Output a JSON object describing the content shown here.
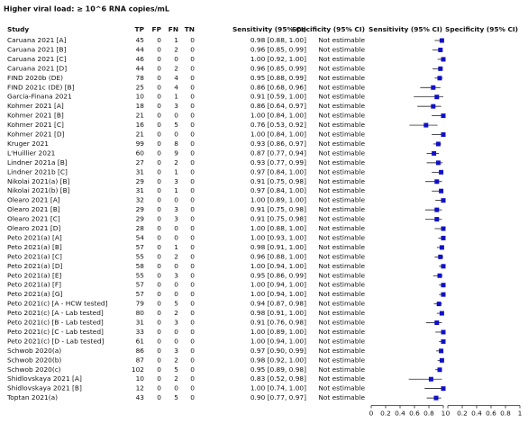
{
  "title": "Higher viral load: ≥ 10^6 RNA copies/mL",
  "columns": [
    "Study",
    "TP",
    "FP",
    "FN",
    "TN",
    "Sensitivity (95% CI)",
    "Specificity (95% CI)",
    "Sensitivity (95% CI)",
    "Specificity (95% CI)"
  ],
  "rows": [
    [
      "Caruana 2021 [A]",
      45,
      0,
      1,
      0,
      "0.98 [0.88, 1.00]",
      "Not estimable",
      0.98,
      0.88,
      1.0
    ],
    [
      "Caruana 2021 [B]",
      44,
      0,
      2,
      0,
      "0.96 [0.85, 0.99]",
      "Not estimable",
      0.96,
      0.85,
      0.99
    ],
    [
      "Caruana 2021 [C]",
      46,
      0,
      0,
      0,
      "1.00 [0.92, 1.00]",
      "Not estimable",
      1.0,
      0.92,
      1.0
    ],
    [
      "Caruana 2021 [D]",
      44,
      0,
      2,
      0,
      "0.96 [0.85, 0.99]",
      "Not estimable",
      0.96,
      0.85,
      0.99
    ],
    [
      "FIND 2020b (DE)",
      78,
      0,
      4,
      0,
      "0.95 [0.88, 0.99]",
      "Not estimable",
      0.95,
      0.88,
      0.99
    ],
    [
      "FIND 2021c (DE) [B]",
      25,
      0,
      4,
      0,
      "0.86 [0.68, 0.96]",
      "Not estimable",
      0.86,
      0.68,
      0.96
    ],
    [
      "Garcia-Finana 2021",
      10,
      0,
      1,
      0,
      "0.91 [0.59, 1.00]",
      "Not estimable",
      0.91,
      0.59,
      1.0
    ],
    [
      "Kohmer 2021 [A]",
      18,
      0,
      3,
      0,
      "0.86 [0.64, 0.97]",
      "Not estimable",
      0.86,
      0.64,
      0.97
    ],
    [
      "Kohmer 2021 [B]",
      21,
      0,
      0,
      0,
      "1.00 [0.84, 1.00]",
      "Not estimable",
      1.0,
      0.84,
      1.0
    ],
    [
      "Kohmer 2021 [C]",
      16,
      0,
      5,
      0,
      "0.76 [0.53, 0.92]",
      "Not estimable",
      0.76,
      0.53,
      0.92
    ],
    [
      "Kohmer 2021 [D]",
      21,
      0,
      0,
      0,
      "1.00 [0.84, 1.00]",
      "Not estimable",
      1.0,
      0.84,
      1.0
    ],
    [
      "Kruger 2021",
      99,
      0,
      8,
      0,
      "0.93 [0.86, 0.97]",
      "Not estimable",
      0.93,
      0.86,
      0.97
    ],
    [
      "L'Huillier 2021",
      60,
      0,
      9,
      0,
      "0.87 [0.77, 0.94]",
      "Not estimable",
      0.87,
      0.77,
      0.94
    ],
    [
      "Lindner 2021a [B]",
      27,
      0,
      2,
      0,
      "0.93 [0.77, 0.99]",
      "Not estimable",
      0.93,
      0.77,
      0.99
    ],
    [
      "Lindner 2021b [C]",
      31,
      0,
      1,
      0,
      "0.97 [0.84, 1.00]",
      "Not estimable",
      0.97,
      0.84,
      1.0
    ],
    [
      "Nikolai 2021(a) [B]",
      29,
      0,
      3,
      0,
      "0.91 [0.75, 0.98]",
      "Not estimable",
      0.91,
      0.75,
      0.98
    ],
    [
      "Nikolai 2021(b) [B]",
      31,
      0,
      1,
      0,
      "0.97 [0.84, 1.00]",
      "Not estimable",
      0.97,
      0.84,
      1.0
    ],
    [
      "Olearo 2021 [A]",
      32,
      0,
      0,
      0,
      "1.00 [0.89, 1.00]",
      "Not estimable",
      1.0,
      0.89,
      1.0
    ],
    [
      "Olearo 2021 [B]",
      29,
      0,
      3,
      0,
      "0.91 [0.75, 0.98]",
      "Not estimable",
      0.91,
      0.75,
      0.98
    ],
    [
      "Olearo 2021 [C]",
      29,
      0,
      3,
      0,
      "0.91 [0.75, 0.98]",
      "Not estimable",
      0.91,
      0.75,
      0.98
    ],
    [
      "Olearo 2021 [D]",
      28,
      0,
      0,
      0,
      "1.00 [0.88, 1.00]",
      "Not estimable",
      1.0,
      0.88,
      1.0
    ],
    [
      "Peto 2021(a) [A]",
      54,
      0,
      0,
      0,
      "1.00 [0.93, 1.00]",
      "Not estimable",
      1.0,
      0.93,
      1.0
    ],
    [
      "Peto 2021(a) [B]",
      57,
      0,
      1,
      0,
      "0.98 [0.91, 1.00]",
      "Not estimable",
      0.98,
      0.91,
      1.0
    ],
    [
      "Peto 2021(a) [C]",
      55,
      0,
      2,
      0,
      "0.96 [0.88, 1.00]",
      "Not estimable",
      0.96,
      0.88,
      1.0
    ],
    [
      "Peto 2021(a) [D]",
      58,
      0,
      0,
      0,
      "1.00 [0.94, 1.00]",
      "Not estimable",
      1.0,
      0.94,
      1.0
    ],
    [
      "Peto 2021(a) [E]",
      55,
      0,
      3,
      0,
      "0.95 [0.86, 0.99]",
      "Not estimable",
      0.95,
      0.86,
      0.99
    ],
    [
      "Peto 2021(a) [F]",
      57,
      0,
      0,
      0,
      "1.00 [0.94, 1.00]",
      "Not estimable",
      1.0,
      0.94,
      1.0
    ],
    [
      "Peto 2021(a) [G]",
      57,
      0,
      0,
      0,
      "1.00 [0.94, 1.00]",
      "Not estimable",
      1.0,
      0.94,
      1.0
    ],
    [
      "Peto 2021(c) [A - HCW tested]",
      79,
      0,
      5,
      0,
      "0.94 [0.87, 0.98]",
      "Not estimable",
      0.94,
      0.87,
      0.98
    ],
    [
      "Peto 2021(c) [A - Lab tested]",
      80,
      0,
      2,
      0,
      "0.98 [0.91, 1.00]",
      "Not estimable",
      0.98,
      0.91,
      1.0
    ],
    [
      "Peto 2021(c) [B - Lab tested]",
      31,
      0,
      3,
      0,
      "0.91 [0.76, 0.98]",
      "Not estimable",
      0.91,
      0.76,
      0.98
    ],
    [
      "Peto 2021(c) [C - Lab tested]",
      33,
      0,
      0,
      0,
      "1.00 [0.89, 1.00]",
      "Not estimable",
      1.0,
      0.89,
      1.0
    ],
    [
      "Peto 2021(c) [D - Lab tested]",
      61,
      0,
      0,
      0,
      "1.00 [0.94, 1.00]",
      "Not estimable",
      1.0,
      0.94,
      1.0
    ],
    [
      "Schwob 2020(a)",
      86,
      0,
      3,
      0,
      "0.97 [0.90, 0.99]",
      "Not estimable",
      0.97,
      0.9,
      0.99
    ],
    [
      "Schwob 2020(b)",
      87,
      0,
      2,
      0,
      "0.98 [0.92, 1.00]",
      "Not estimable",
      0.98,
      0.92,
      1.0
    ],
    [
      "Schwob 2020(c)",
      102,
      0,
      5,
      0,
      "0.95 [0.89, 0.98]",
      "Not estimable",
      0.95,
      0.89,
      0.98
    ],
    [
      "Shidlovskaya 2021 [A]",
      10,
      0,
      2,
      0,
      "0.83 [0.52, 0.98]",
      "Not estimable",
      0.83,
      0.52,
      0.98
    ],
    [
      "Shidlovskaya 2021 [B]",
      12,
      0,
      0,
      0,
      "1.00 [0.74, 1.00]",
      "Not estimable",
      1.0,
      0.74,
      1.0
    ],
    [
      "Toptan 2021(a)",
      43,
      0,
      5,
      0,
      "0.90 [0.77, 0.97]",
      "Not estimable",
      0.9,
      0.77,
      0.97
    ]
  ],
  "sensitivity_axis": {
    "xlim": [
      0,
      1
    ],
    "xticks": [
      0,
      0.2,
      0.4,
      0.6,
      0.8,
      1
    ]
  },
  "specificity_axis": {
    "xlim": [
      0,
      1
    ],
    "xticks": [
      0,
      0.2,
      0.4,
      0.6,
      0.8,
      1
    ]
  },
  "marker_color": "#1010c8"
}
